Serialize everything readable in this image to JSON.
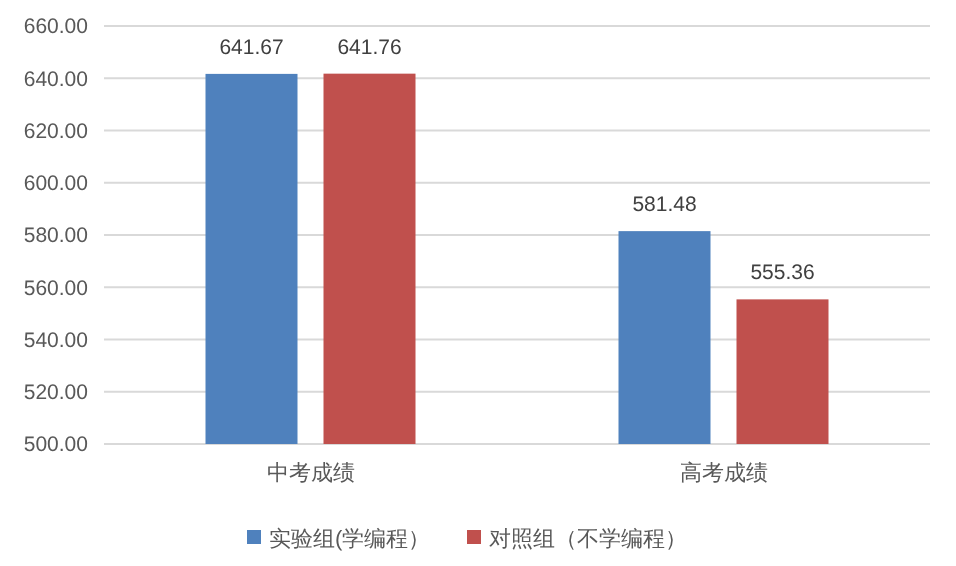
{
  "chart_data": {
    "type": "bar",
    "categories": [
      "中考成绩",
      "高考成绩"
    ],
    "series": [
      {
        "name": "实验组(学编程）",
        "color": "#4f81bd",
        "values": [
          641.67,
          581.48
        ]
      },
      {
        "name": "对照组（不学编程）",
        "color": "#c0504d",
        "values": [
          641.76,
          555.36
        ]
      }
    ],
    "ylim": [
      500,
      660
    ],
    "yticks": [
      {
        "value": 500,
        "label": "500.00"
      },
      {
        "value": 520,
        "label": "520.00"
      },
      {
        "value": 540,
        "label": "540.00"
      },
      {
        "value": 560,
        "label": "560.00"
      },
      {
        "value": 580,
        "label": "580.00"
      },
      {
        "value": 600,
        "label": "600.00"
      },
      {
        "value": 620,
        "label": "620.00"
      },
      {
        "value": 640,
        "label": "640.00"
      },
      {
        "value": 660,
        "label": "660.00"
      }
    ],
    "grid": "y",
    "data_labels": true,
    "legend": "bottom"
  }
}
